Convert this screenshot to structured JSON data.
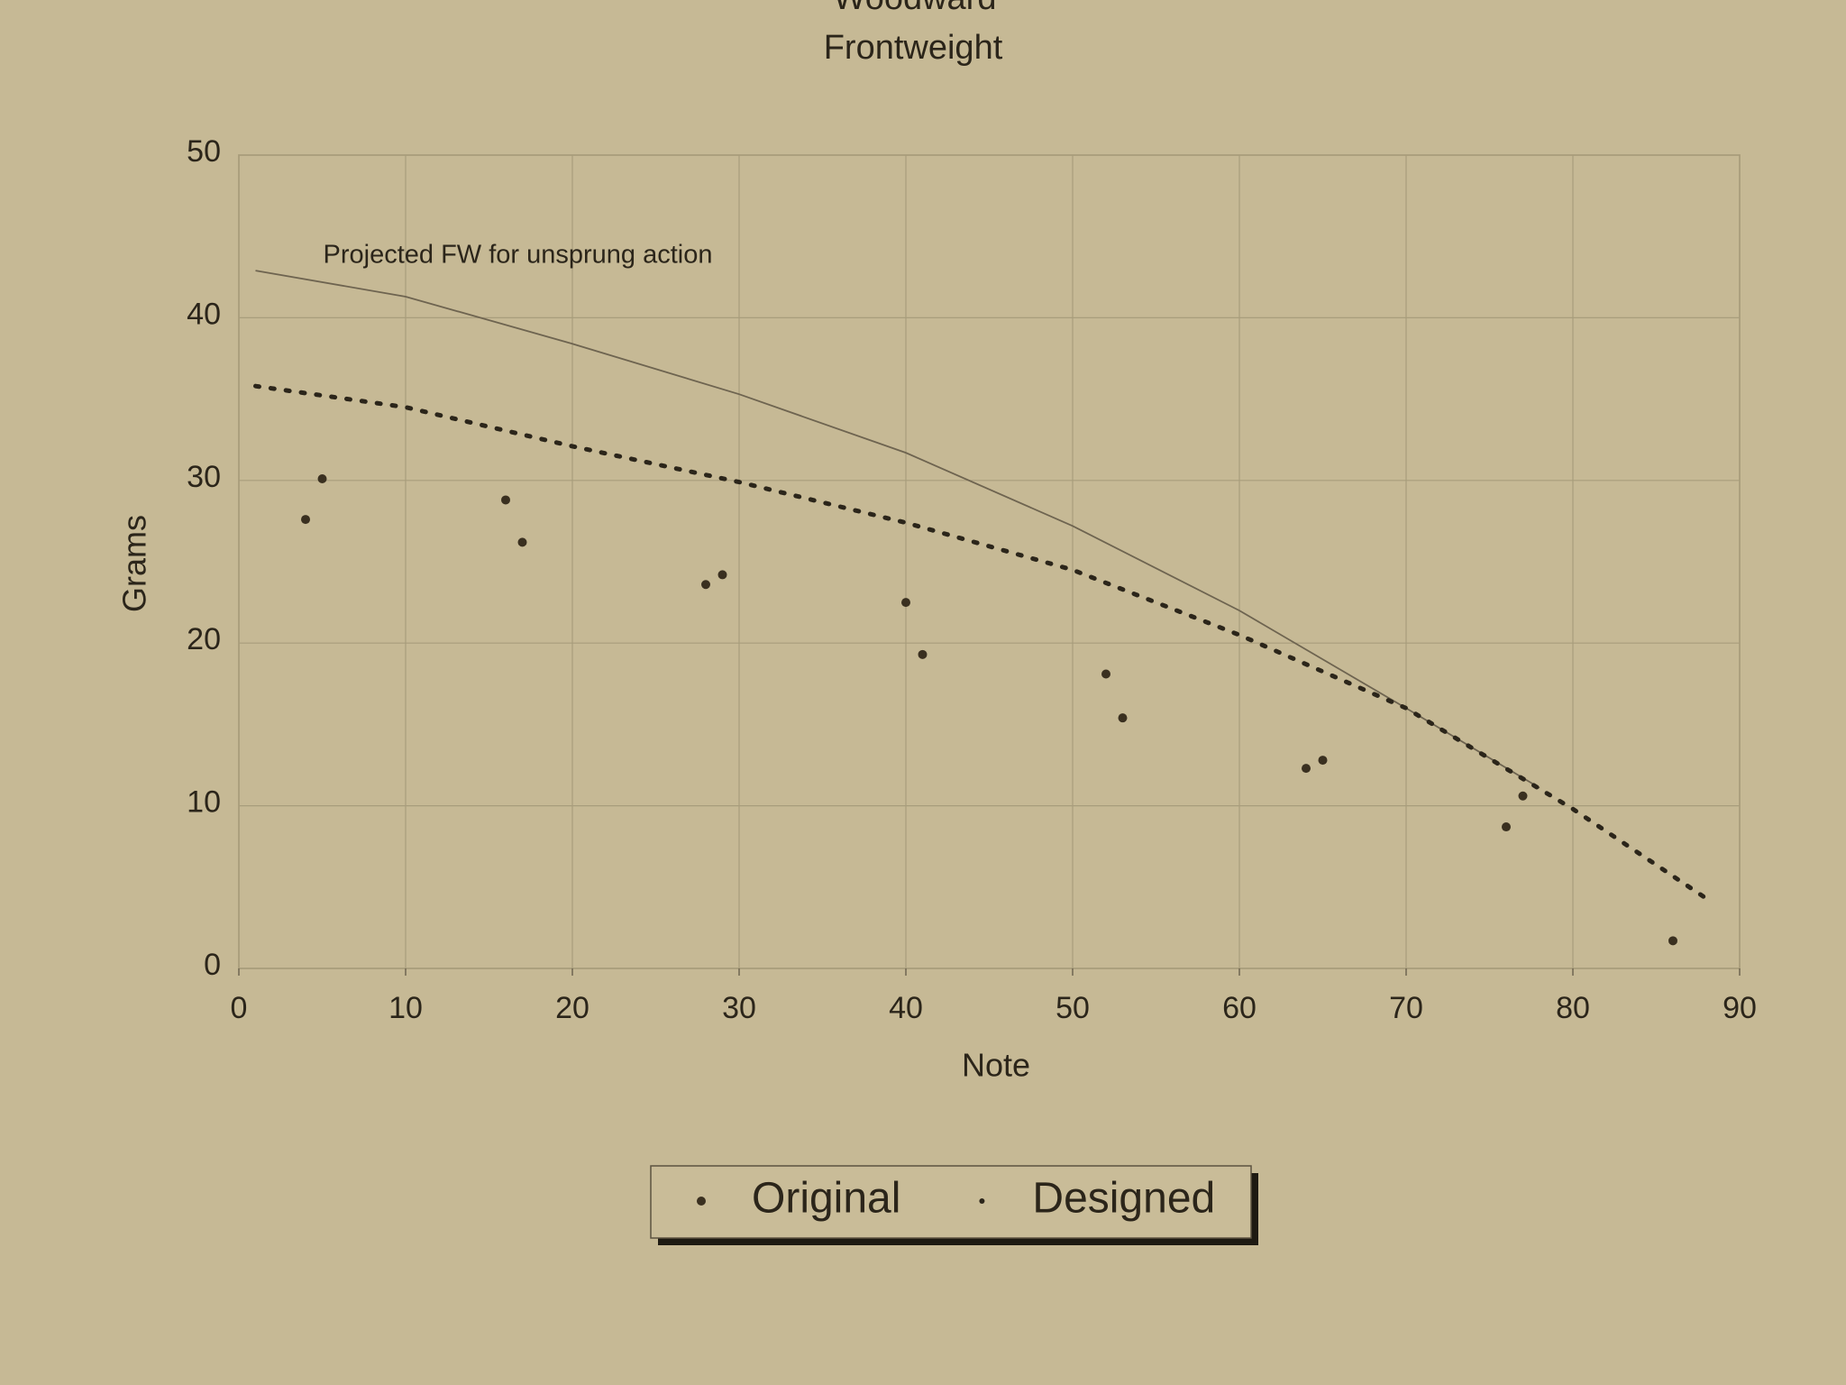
{
  "chart_data": {
    "type": "scatter",
    "title": "Woodward",
    "subtitle": "Frontweight",
    "x_label": "Note",
    "y_label": "Grams",
    "xlim": [
      0,
      90
    ],
    "ylim": [
      0,
      50
    ],
    "xticks": [
      0,
      10,
      20,
      30,
      40,
      50,
      60,
      70,
      80,
      90
    ],
    "yticks": [
      0,
      10,
      20,
      30,
      40,
      50
    ],
    "grid": true,
    "legend": "bottom",
    "annotation": {
      "text": "Projected FW for unsprung action",
      "color": "#6e6450",
      "x": [
        1,
        10,
        20,
        30,
        40,
        50,
        60,
        70,
        78
      ],
      "values": [
        42.9,
        41.3,
        38.4,
        35.3,
        31.7,
        27.2,
        22.0,
        16.0,
        11.1
      ]
    },
    "series": [
      {
        "name": "Original",
        "color": "#3a3020",
        "style": "points",
        "x": [
          4,
          5,
          16,
          17,
          28,
          29,
          40,
          41,
          52,
          53,
          64,
          65,
          76,
          77,
          86
        ],
        "values": [
          27.6,
          30.1,
          28.8,
          26.2,
          23.6,
          24.2,
          22.5,
          19.3,
          18.1,
          15.4,
          12.3,
          12.8,
          8.7,
          10.6,
          1.7
        ]
      },
      {
        "name": "Designed",
        "color": "#2b251a",
        "style": "dotted",
        "x": [
          1,
          10,
          20,
          30,
          40,
          50,
          60,
          70,
          80,
          88
        ],
        "values": [
          35.8,
          34.5,
          32.1,
          29.9,
          27.4,
          24.5,
          20.5,
          16.0,
          9.8,
          4.3
        ]
      }
    ]
  }
}
